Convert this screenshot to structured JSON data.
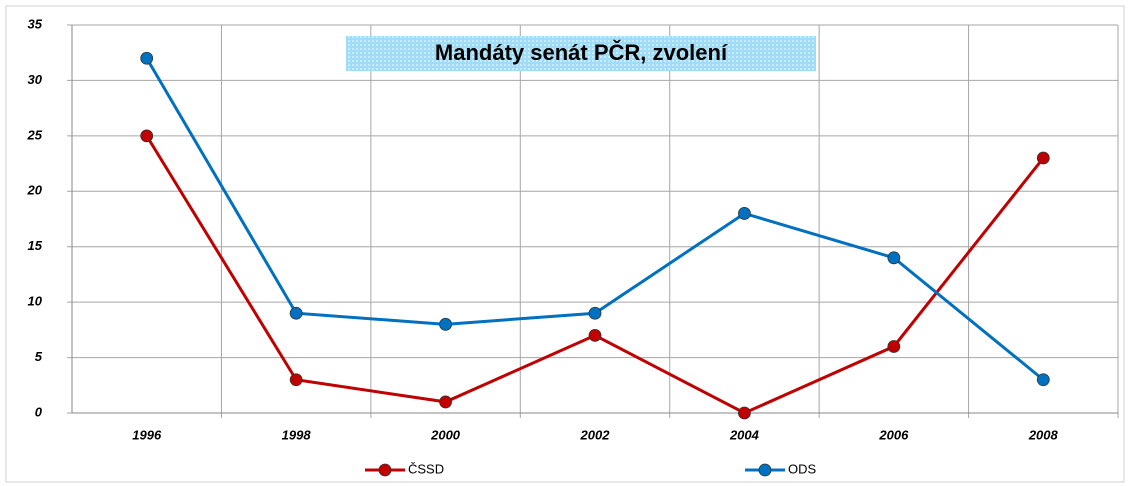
{
  "chart_data": {
    "type": "line",
    "title": "Mandáty senát PČR, zvolení",
    "categories": [
      "1996",
      "1998",
      "2000",
      "2002",
      "2004",
      "2006",
      "2008"
    ],
    "series": [
      {
        "name": "ČSSD",
        "color": "#c00000",
        "values": [
          25,
          3,
          1,
          7,
          0,
          6,
          23
        ]
      },
      {
        "name": "ODS",
        "color": "#0070c0",
        "values": [
          32,
          9,
          8,
          9,
          18,
          14,
          3
        ]
      }
    ],
    "ylim": [
      0,
      35
    ],
    "yticks": [
      0,
      5,
      10,
      15,
      20,
      25,
      30,
      35
    ],
    "grid": true
  }
}
